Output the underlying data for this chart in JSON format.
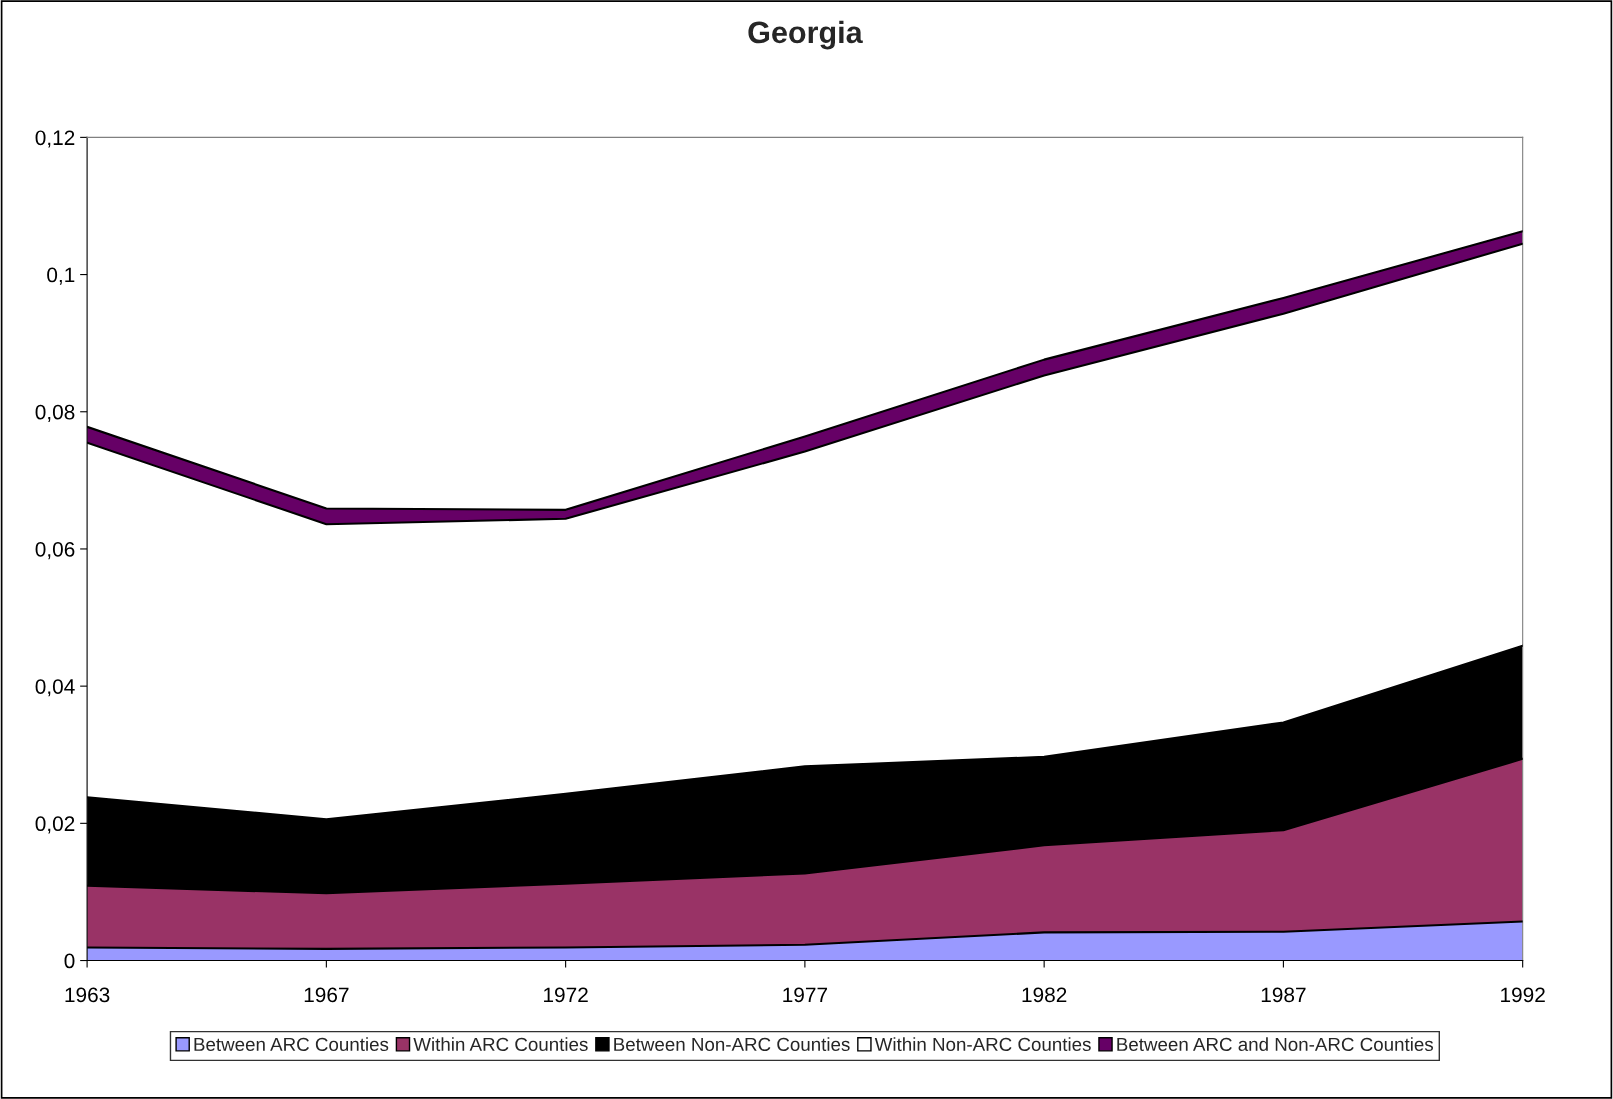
{
  "chart_data": {
    "type": "area",
    "title": "Georgia",
    "stacked": true,
    "categories": [
      "1963",
      "1967",
      "1972",
      "1977",
      "1982",
      "1987",
      "1992"
    ],
    "series": [
      {
        "name": "Between ARC Counties",
        "color": "#9999ff",
        "values": [
          0.0019,
          0.0017,
          0.0019,
          0.0023,
          0.0041,
          0.0042,
          0.0057
        ]
      },
      {
        "name": "Within ARC Counties",
        "color": "#993366",
        "values": [
          0.009,
          0.0081,
          0.0093,
          0.0104,
          0.0127,
          0.0148,
          0.0237
        ]
      },
      {
        "name": "Between Non-ARC Counties",
        "color": "#000000",
        "values": [
          0.0129,
          0.0108,
          0.0131,
          0.0156,
          0.0129,
          0.0157,
          0.0165
        ]
      },
      {
        "name": "Within Non-ARC Counties",
        "color": "#ffffff",
        "values": [
          0.0517,
          0.043,
          0.0401,
          0.0459,
          0.0556,
          0.0596,
          0.0586
        ]
      },
      {
        "name": "Between ARC and Non-ARC Counties",
        "color": "#660066",
        "values": [
          0.0023,
          0.0023,
          0.0013,
          0.0022,
          0.0023,
          0.0023,
          0.0018
        ]
      }
    ],
    "ylim": [
      0,
      0.12
    ],
    "yticks": [
      0,
      {
        "value": 0.02,
        "label": "0,02"
      },
      {
        "value": 0.04,
        "label": "0,04"
      },
      {
        "value": 0.06,
        "label": "0,06"
      },
      {
        "value": 0.08,
        "label": "0,08"
      },
      {
        "value": 0.1,
        "label": "0,1"
      },
      {
        "value": 0.12,
        "label": "0,12"
      }
    ],
    "grid": false,
    "legend": "bottom"
  }
}
